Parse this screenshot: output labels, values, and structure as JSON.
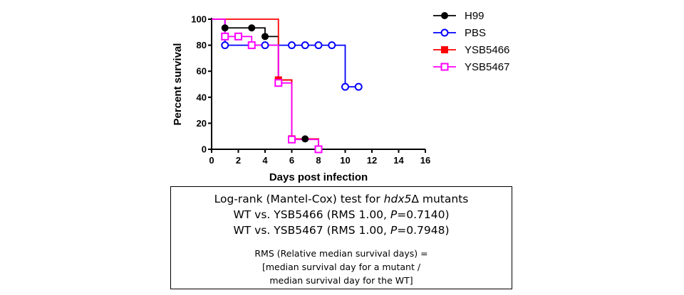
{
  "chart_data": {
    "type": "line",
    "subtype": "kaplan-meier survival",
    "xlabel": "Days post infection",
    "ylabel": "Percent survival",
    "xlim": [
      0,
      16
    ],
    "ylim": [
      0,
      100
    ],
    "xticks": [
      0,
      2,
      4,
      6,
      8,
      10,
      12,
      14,
      16
    ],
    "yticks": [
      0,
      20,
      40,
      60,
      80,
      100
    ],
    "legend_position": "right",
    "series": [
      {
        "name": "H99",
        "color": "#000000",
        "marker": "filled-circle",
        "steps": [
          [
            0,
            100
          ],
          [
            1,
            93.3
          ],
          [
            3,
            93.3
          ],
          [
            4,
            86.7
          ],
          [
            5,
            53.3
          ],
          [
            6,
            8
          ],
          [
            7,
            8
          ],
          [
            8,
            0
          ]
        ],
        "markers": [
          [
            1,
            93.3
          ],
          [
            3,
            93.3
          ],
          [
            4,
            86.7
          ],
          [
            5,
            53.3
          ],
          [
            6,
            8
          ],
          [
            7,
            8
          ],
          [
            8,
            0
          ]
        ]
      },
      {
        "name": "PBS",
        "color": "#0000ff",
        "marker": "open-circle",
        "steps": [
          [
            0,
            100
          ],
          [
            1,
            80
          ],
          [
            10,
            48
          ],
          [
            11,
            48
          ]
        ],
        "markers": [
          [
            1,
            80
          ],
          [
            4,
            80
          ],
          [
            6,
            80
          ],
          [
            7,
            80
          ],
          [
            8,
            80
          ],
          [
            9,
            80
          ],
          [
            10,
            48
          ],
          [
            11,
            48
          ]
        ]
      },
      {
        "name": "YSB5466",
        "color": "#ff0000",
        "marker": "filled-square",
        "steps": [
          [
            0,
            100
          ],
          [
            5,
            53.3
          ],
          [
            6,
            8
          ],
          [
            8,
            0
          ]
        ],
        "markers": [
          [
            5,
            53.3
          ],
          [
            6,
            8
          ],
          [
            8,
            0
          ]
        ]
      },
      {
        "name": "YSB5467",
        "color": "#ff00ff",
        "marker": "open-square",
        "steps": [
          [
            0,
            100
          ],
          [
            1,
            86.7
          ],
          [
            2,
            86.7
          ],
          [
            3,
            80
          ],
          [
            5,
            51
          ],
          [
            6,
            7.5
          ],
          [
            8,
            0
          ]
        ],
        "markers": [
          [
            1,
            86.7
          ],
          [
            2,
            86.7
          ],
          [
            3,
            80
          ],
          [
            5,
            51
          ],
          [
            6,
            7.5
          ],
          [
            8,
            0
          ]
        ]
      }
    ]
  },
  "stats_box": {
    "title_prefix": "Log-rank (Mantel-Cox) test for ",
    "title_gene": "hdx5",
    "title_suffix": "Δ mutants",
    "row1_prefix": "WT vs. YSB5466 (RMS 1.00, ",
    "row1_p": "P",
    "row1_suffix": "=0.7140)",
    "row2_prefix": "WT vs. YSB5467 (RMS 1.00, ",
    "row2_p": "P",
    "row2_suffix": "=0.7948)",
    "rms_line1": "RMS (Relative median survival days) =",
    "rms_line2": "[median survival day for a mutant  /",
    "rms_line3": "median survival day for the WT]"
  }
}
